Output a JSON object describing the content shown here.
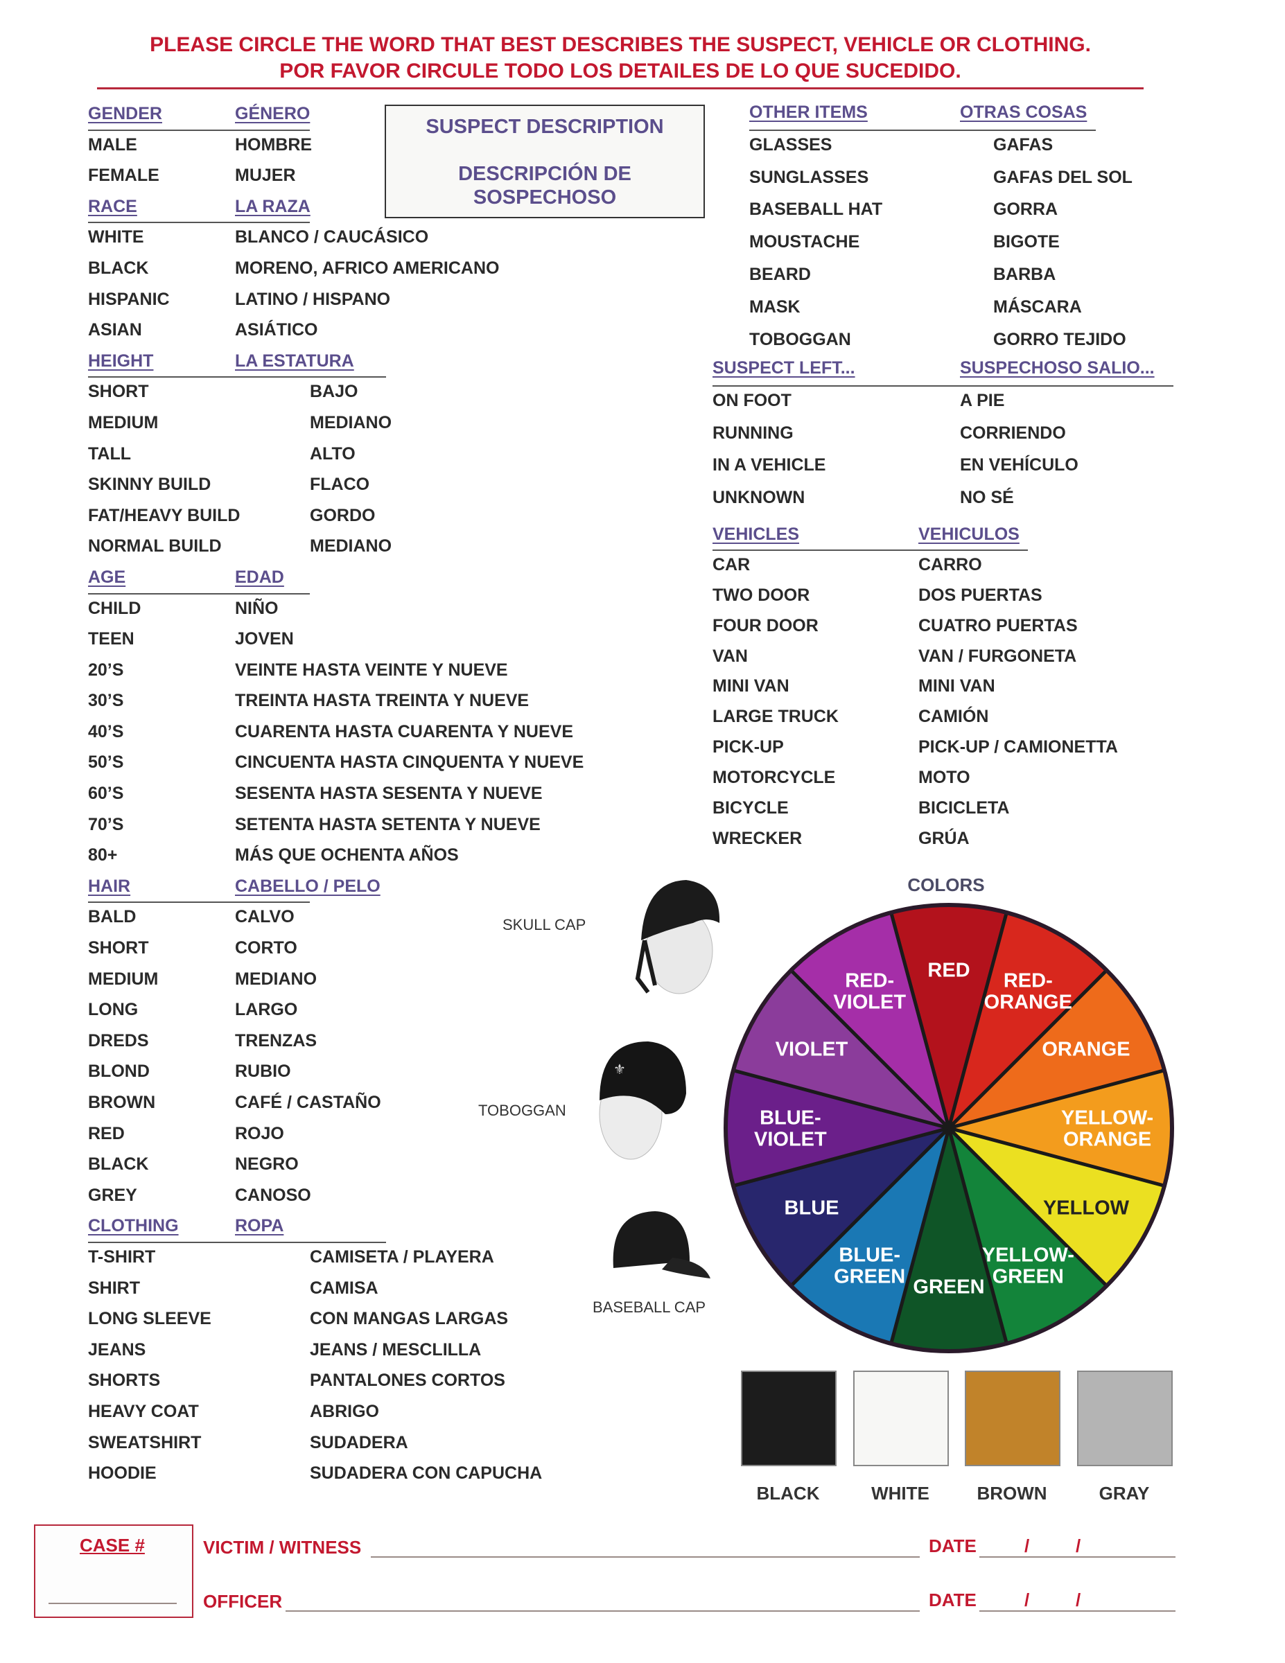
{
  "header": {
    "line1": "PLEASE CIRCLE THE WORD THAT BEST DESCRIBES THE SUSPECT, VEHICLE OR CLOTHING.",
    "line2": "POR FAVOR CIRCULE TODO LOS DETAILES DE LO QUE SUCEDIDO."
  },
  "title_box": {
    "english": "SUSPECT DESCRIPTION",
    "spanish_1": "DESCRIPCIÓN DE",
    "spanish_2": "SOSPECHOSO"
  },
  "left_sections": [
    {
      "header": [
        "GENDER",
        "GÉNERO"
      ],
      "rows": [
        [
          "MALE",
          "HOMBRE"
        ],
        [
          "FEMALE",
          "MUJER"
        ]
      ]
    },
    {
      "header": [
        "RACE",
        "LA RAZA"
      ],
      "rows": [
        [
          "WHITE",
          "BLANCO / CAUCÁSICO"
        ],
        [
          "BLACK",
          "MORENO, AFRICO AMERICANO"
        ],
        [
          "HISPANIC",
          "LATINO / HISPANO"
        ],
        [
          "ASIAN",
          "ASIÁTICO"
        ]
      ]
    },
    {
      "header": [
        "HEIGHT",
        "LA ESTATURA"
      ],
      "wide": true,
      "rows": [
        [
          "SHORT",
          "BAJO"
        ],
        [
          "MEDIUM",
          "MEDIANO"
        ],
        [
          "TALL",
          "ALTO"
        ],
        [
          "SKINNY BUILD",
          "FLACO"
        ],
        [
          "FAT/HEAVY BUILD",
          "GORDO"
        ],
        [
          "NORMAL BUILD",
          "MEDIANO"
        ]
      ]
    },
    {
      "header": [
        "AGE",
        "EDAD"
      ],
      "rows": [
        [
          "CHILD",
          "NIÑO"
        ],
        [
          "TEEN",
          "JOVEN"
        ],
        [
          "20’S",
          "VEINTE HASTA VEINTE Y NUEVE"
        ],
        [
          "30’S",
          "TREINTA HASTA TREINTA Y NUEVE"
        ],
        [
          "40’S",
          "CUARENTA HASTA CUARENTA Y NUEVE"
        ],
        [
          "50’S",
          "CINCUENTA HASTA CINQUENTA Y NUEVE"
        ],
        [
          "60’S",
          "SESENTA HASTA SESENTA Y NUEVE"
        ],
        [
          "70’S",
          "SETENTA HASTA SETENTA Y NUEVE"
        ],
        [
          "80+",
          "MÁS QUE OCHENTA AÑOS"
        ]
      ]
    },
    {
      "header": [
        "HAIR",
        "CABELLO / PELO"
      ],
      "rows": [
        [
          "BALD",
          "CALVO"
        ],
        [
          "SHORT",
          "CORTO"
        ],
        [
          "MEDIUM",
          "MEDIANO"
        ],
        [
          "LONG",
          "LARGO"
        ],
        [
          "DREDS",
          "TRENZAS"
        ],
        [
          "BLOND",
          "RUBIO"
        ],
        [
          "BROWN",
          "CAFÉ / CASTAÑO"
        ],
        [
          "RED",
          "ROJO"
        ],
        [
          "BLACK",
          "NEGRO"
        ],
        [
          "GREY",
          "CANOSO"
        ]
      ]
    },
    {
      "header": [
        "CLOTHING",
        "ROPA"
      ],
      "wide": true,
      "rows": [
        [
          "T-SHIRT",
          "CAMISETA / PLAYERA"
        ],
        [
          "SHIRT",
          "CAMISA"
        ],
        [
          "LONG SLEEVE",
          "CON MANGAS LARGAS"
        ],
        [
          "JEANS",
          "JEANS / MESCLILLA"
        ],
        [
          "SHORTS",
          "PANTALONES CORTOS"
        ],
        [
          "HEAVY COAT",
          "ABRIGO"
        ],
        [
          "SWEATSHIRT",
          "SUDADERA"
        ],
        [
          "HOODIE",
          "SUDADERA CON CAPUCHA"
        ]
      ]
    }
  ],
  "other_items": {
    "header": [
      "OTHER ITEMS",
      "OTRAS COSAS"
    ],
    "rows": [
      [
        "GLASSES",
        "GAFAS"
      ],
      [
        "SUNGLASSES",
        "GAFAS DEL SOL"
      ],
      [
        "BASEBALL HAT",
        "GORRA"
      ],
      [
        "MOUSTACHE",
        "BIGOTE"
      ],
      [
        "BEARD",
        "BARBA"
      ],
      [
        "MASK",
        "MÁSCARA"
      ],
      [
        "TOBOGGAN",
        "GORRO TEJIDO"
      ]
    ]
  },
  "suspect_left": {
    "header": [
      "SUSPECT LEFT...",
      "SUSPECHOSO SALIO..."
    ],
    "rows": [
      [
        "ON FOOT",
        "A PIE"
      ],
      [
        "RUNNING",
        "CORRIENDO"
      ],
      [
        "IN A VEHICLE",
        "EN VEHÍCULO"
      ],
      [
        "UNKNOWN",
        "NO SÉ"
      ]
    ]
  },
  "vehicles": {
    "header": [
      "VEHICLES",
      "VEHICULOS"
    ],
    "rows": [
      [
        "CAR",
        "CARRO"
      ],
      [
        "TWO DOOR",
        "DOS PUERTAS"
      ],
      [
        "FOUR DOOR",
        "CUATRO PUERTAS"
      ],
      [
        "VAN",
        "VAN / FURGONETA"
      ],
      [
        "MINI VAN",
        "MINI VAN"
      ],
      [
        "LARGE TRUCK",
        "CAMIÓN"
      ],
      [
        "PICK-UP",
        "PICK-UP / CAMIONETTA"
      ],
      [
        "MOTORCYCLE",
        "MOTO"
      ],
      [
        "BICYCLE",
        "BICICLETA"
      ],
      [
        "WRECKER",
        "GRÚA"
      ]
    ]
  },
  "hats": {
    "skull_cap": "SKULL CAP",
    "toboggan": "TOBOGGAN",
    "baseball_cap": "BASEBALL CAP"
  },
  "colors": {
    "title": "COLORS",
    "wheel": [
      {
        "label": "RED",
        "color": "#b3121c",
        "text": "#ffffff"
      },
      {
        "label": "RED-\nORANGE",
        "color": "#d8271d",
        "text": "#ffffff"
      },
      {
        "label": "ORANGE",
        "color": "#ee6b1b",
        "text": "#ffffff"
      },
      {
        "label": "YELLOW-\nORANGE",
        "color": "#f39c1d",
        "text": "#ffffff"
      },
      {
        "label": "YELLOW",
        "color": "#ebe021",
        "text": "#222222"
      },
      {
        "label": "YELLOW-\nGREEN",
        "color": "#13843a",
        "text": "#ffffff"
      },
      {
        "label": "GREEN",
        "color": "#0f5527",
        "text": "#ffffff"
      },
      {
        "label": "BLUE-\nGREEN",
        "color": "#1a78b4",
        "text": "#ffffff"
      },
      {
        "label": "BLUE",
        "color": "#28266d",
        "text": "#ffffff"
      },
      {
        "label": "BLUE-\nVIOLET",
        "color": "#6b1f8a",
        "text": "#ffffff"
      },
      {
        "label": "VIOLET",
        "color": "#8b3c9b",
        "text": "#ffffff"
      },
      {
        "label": "RED-\nVIOLET",
        "color": "#a52ea8",
        "text": "#ffffff"
      }
    ],
    "swatches": [
      {
        "label": "BLACK",
        "color": "#1c1c1c"
      },
      {
        "label": "WHITE",
        "color": "#f7f7f5"
      },
      {
        "label": "BROWN",
        "color": "#c1832a"
      },
      {
        "label": "GRAY",
        "color": "#b4b4b4"
      }
    ]
  },
  "footer": {
    "case_label": "CASE #",
    "case_value": "",
    "victim_label": "VICTIM / WITNESS",
    "victim_value": "",
    "officer_label": "OFFICER",
    "officer_value": "",
    "date_label": "DATE",
    "date_sep": "/"
  }
}
